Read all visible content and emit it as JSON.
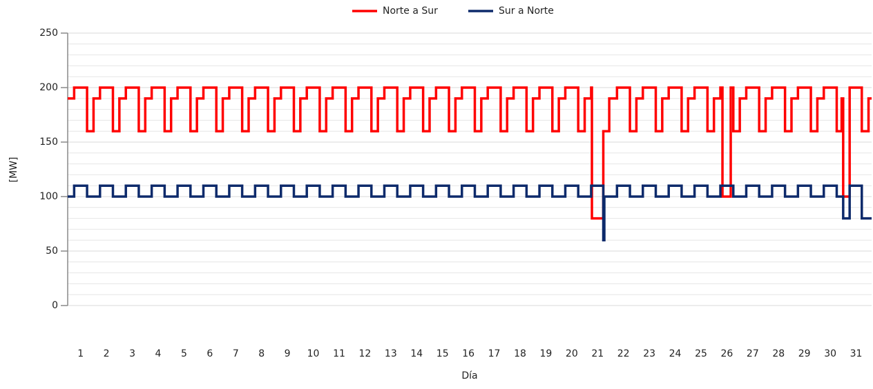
{
  "chart_data": {
    "type": "line",
    "step": "post",
    "xlabel": "Día",
    "ylabel": "[MW]",
    "xlim": [
      0,
      31.1
    ],
    "ylim": [
      0,
      250
    ],
    "yticks": [
      0,
      50,
      100,
      150,
      200,
      250
    ],
    "yminorticks": [
      10,
      20,
      30,
      40,
      60,
      70,
      80,
      90,
      110,
      120,
      130,
      140,
      160,
      170,
      180,
      190,
      210,
      220,
      230,
      240
    ],
    "grid": true,
    "legend": "top",
    "xticks": [
      {
        "value": 0.5,
        "label": "1"
      },
      {
        "value": 1.5,
        "label": "2"
      },
      {
        "value": 2.5,
        "label": "3"
      },
      {
        "value": 3.5,
        "label": "4"
      },
      {
        "value": 4.5,
        "label": "5"
      },
      {
        "value": 5.5,
        "label": "6"
      },
      {
        "value": 6.5,
        "label": "7"
      },
      {
        "value": 7.5,
        "label": "8"
      },
      {
        "value": 8.5,
        "label": "9"
      },
      {
        "value": 9.5,
        "label": "10"
      },
      {
        "value": 10.5,
        "label": "11"
      },
      {
        "value": 11.5,
        "label": "12"
      },
      {
        "value": 12.5,
        "label": "13"
      },
      {
        "value": 13.5,
        "label": "14"
      },
      {
        "value": 14.5,
        "label": "15"
      },
      {
        "value": 15.5,
        "label": "16"
      },
      {
        "value": 16.5,
        "label": "17"
      },
      {
        "value": 17.5,
        "label": "18"
      },
      {
        "value": 18.5,
        "label": "19"
      },
      {
        "value": 19.5,
        "label": "20"
      },
      {
        "value": 20.5,
        "label": "21"
      },
      {
        "value": 21.5,
        "label": "22"
      },
      {
        "value": 22.5,
        "label": "23"
      },
      {
        "value": 23.5,
        "label": "24"
      },
      {
        "value": 24.5,
        "label": "25"
      },
      {
        "value": 25.5,
        "label": "26"
      },
      {
        "value": 26.5,
        "label": "27"
      },
      {
        "value": 27.5,
        "label": "28"
      },
      {
        "value": 28.5,
        "label": "29"
      },
      {
        "value": 29.5,
        "label": "30"
      },
      {
        "value": 30.5,
        "label": "31"
      }
    ],
    "x": [
      0,
      0.25,
      0.75,
      1,
      1.25,
      1.75,
      2,
      2.25,
      2.75,
      3,
      3.25,
      3.75,
      4,
      4.25,
      4.75,
      5,
      5.25,
      5.75,
      6,
      6.25,
      6.75,
      7,
      7.25,
      7.75,
      8,
      8.25,
      8.75,
      9,
      9.25,
      9.75,
      10,
      10.25,
      10.75,
      11,
      11.25,
      11.75,
      12,
      12.25,
      12.75,
      13,
      13.25,
      13.75,
      14,
      14.25,
      14.75,
      15,
      15.25,
      15.75,
      16,
      16.25,
      16.75,
      17,
      17.25,
      17.75,
      18,
      18.25,
      18.75,
      19,
      19.25,
      19.75,
      20,
      20.25,
      20.28,
      20.72,
      20.76,
      20.95,
      21,
      21.25,
      21.75,
      22,
      22.25,
      22.75,
      23,
      23.25,
      23.75,
      24,
      24.25,
      24.75,
      25,
      25.25,
      25.33,
      25.65,
      25.75,
      26,
      26.25,
      26.75,
      27,
      27.25,
      27.75,
      28,
      28.25,
      28.75,
      29,
      29.25,
      29.75,
      29.94,
      30,
      30.25,
      30.72,
      30.98,
      31.1
    ],
    "series": [
      {
        "name": "Norte a Sur",
        "color": "#ff0000",
        "values": [
          190,
          200,
          160,
          190,
          200,
          160,
          190,
          200,
          160,
          190,
          200,
          160,
          190,
          200,
          160,
          190,
          200,
          160,
          190,
          200,
          160,
          190,
          200,
          160,
          190,
          200,
          160,
          190,
          200,
          160,
          190,
          200,
          160,
          190,
          200,
          160,
          190,
          200,
          160,
          190,
          200,
          160,
          190,
          200,
          160,
          190,
          200,
          160,
          190,
          200,
          160,
          190,
          200,
          160,
          190,
          200,
          160,
          190,
          200,
          160,
          190,
          200,
          80,
          160,
          160,
          190,
          190,
          200,
          160,
          190,
          200,
          160,
          190,
          200,
          160,
          190,
          200,
          160,
          190,
          200,
          100,
          200,
          160,
          190,
          200,
          160,
          190,
          200,
          160,
          190,
          200,
          160,
          190,
          200,
          160,
          190,
          100,
          200,
          160,
          190,
          190
        ]
      },
      {
        "name": "Sur a Norte",
        "color": "#0d2a6b",
        "values": [
          100,
          110,
          100,
          100,
          110,
          100,
          100,
          110,
          100,
          100,
          110,
          100,
          100,
          110,
          100,
          100,
          110,
          100,
          100,
          110,
          100,
          100,
          110,
          100,
          100,
          110,
          100,
          100,
          110,
          100,
          100,
          110,
          100,
          100,
          110,
          100,
          100,
          110,
          100,
          100,
          110,
          100,
          100,
          110,
          100,
          100,
          110,
          100,
          100,
          110,
          100,
          100,
          110,
          100,
          100,
          110,
          100,
          100,
          110,
          100,
          100,
          110,
          110,
          60,
          100,
          100,
          100,
          110,
          100,
          100,
          110,
          100,
          100,
          110,
          100,
          100,
          110,
          100,
          100,
          110,
          110,
          110,
          100,
          100,
          110,
          100,
          100,
          110,
          100,
          100,
          110,
          100,
          100,
          110,
          100,
          100,
          80,
          110,
          80,
          80,
          80
        ]
      }
    ]
  }
}
